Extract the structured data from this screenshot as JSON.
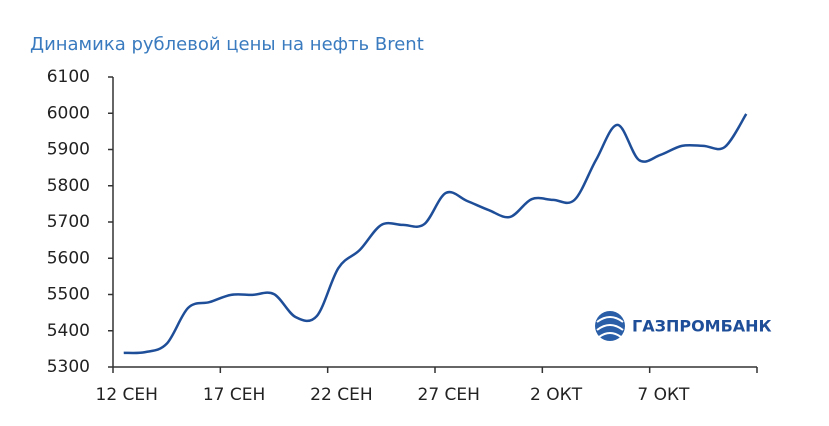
{
  "chart_data": {
    "type": "line",
    "title": "Динамика рублевой цены на нефть Brent",
    "logo": "ГАЗПРОМБАНК",
    "categories": [
      "12 СЕН",
      null,
      null,
      null,
      null,
      "17 СЕН",
      null,
      null,
      null,
      null,
      "22 СЕН",
      null,
      null,
      null,
      null,
      "27 СЕН",
      null,
      null,
      null,
      null,
      "2 ОКТ",
      null,
      null,
      null,
      null,
      "7 ОКТ",
      null,
      null,
      null,
      null
    ],
    "series": [
      {
        "name": "Brent",
        "color": "#1f4e99",
        "values": [
          5339,
          5341,
          5364,
          5463,
          5479,
          5499,
          5499,
          5501,
          5438,
          5441,
          5573,
          5623,
          5692,
          5692,
          5694,
          5780,
          5758,
          5733,
          5714,
          5763,
          5761,
          5761,
          5871,
          5968,
          5871,
          5885,
          5910,
          5910,
          5907,
          5998
        ]
      }
    ],
    "ylim": [
      5300,
      6100
    ],
    "yticks": [
      5300,
      5400,
      5500,
      5600,
      5700,
      5800,
      5900,
      6000,
      6100
    ]
  }
}
